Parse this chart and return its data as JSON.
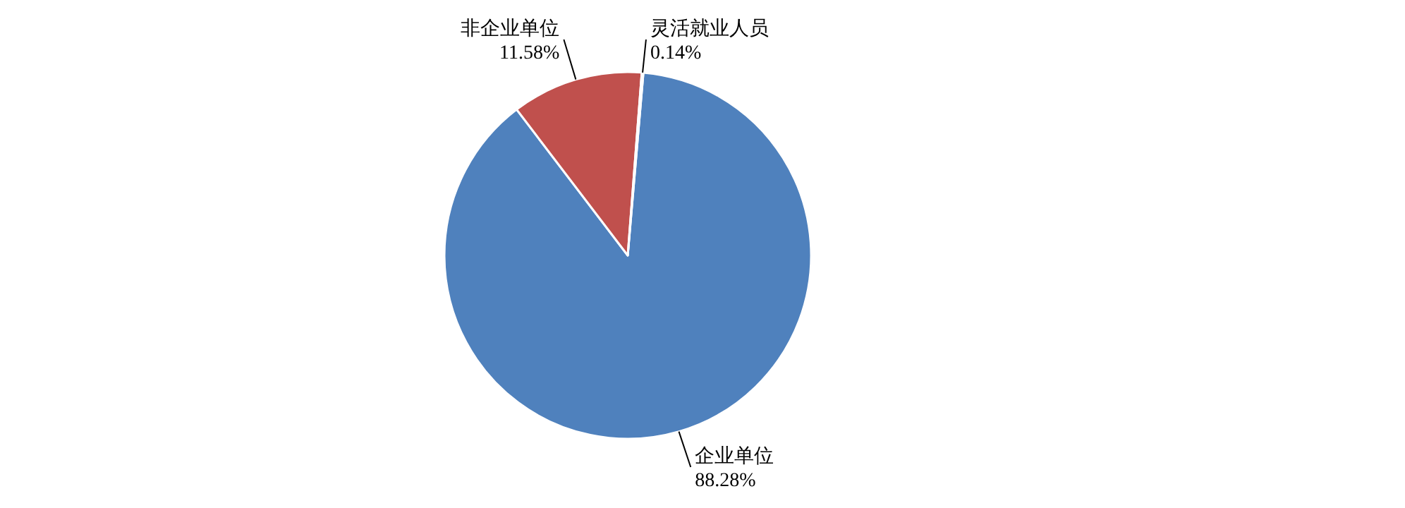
{
  "chart_data": {
    "type": "pie",
    "categories": [
      "企业单位",
      "非企业单位",
      "灵活就业人员"
    ],
    "values": [
      88.28,
      11.58,
      0.14
    ],
    "colors": [
      "#4f81bd",
      "#c0504d",
      "#9bbb59"
    ],
    "value_labels": [
      "88.28%",
      "11.58%",
      "0.14%"
    ],
    "legend": false
  }
}
